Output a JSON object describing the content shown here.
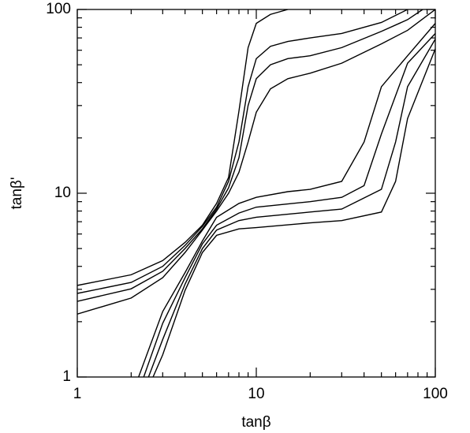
{
  "chart_data": {
    "type": "line",
    "xlabel": "tanβ",
    "ylabel": "tanβ'",
    "xscale": "log",
    "yscale": "log",
    "xlim": [
      1,
      100
    ],
    "ylim": [
      1,
      100
    ],
    "xticks": [
      1,
      10,
      100
    ],
    "yticks": [
      1,
      10,
      100
    ],
    "series": [
      {
        "color": "#000000",
        "x": [
          1,
          2,
          3,
          4,
          5,
          6,
          7,
          8,
          9,
          10,
          12,
          15
        ],
        "values": [
          3.15,
          3.6,
          4.3,
          5.4,
          6.7,
          8.8,
          12.2,
          28,
          62,
          84,
          94,
          100
        ]
      },
      {
        "color": "#000000",
        "x": [
          1,
          2,
          3,
          4,
          5,
          6,
          7,
          8,
          9,
          10,
          12,
          15,
          20,
          30,
          50,
          70
        ],
        "values": [
          2.85,
          3.27,
          4.0,
          5.2,
          6.6,
          8.4,
          11.6,
          19,
          38,
          54,
          63,
          67,
          70,
          74,
          85,
          100
        ]
      },
      {
        "color": "#000000",
        "x": [
          1,
          2,
          3,
          4,
          5,
          6,
          7,
          8,
          9,
          10,
          12,
          15,
          20,
          30,
          50,
          70,
          85
        ],
        "values": [
          2.58,
          3.02,
          3.76,
          5.0,
          6.4,
          8.2,
          10.7,
          15.6,
          30,
          42,
          50,
          54,
          56,
          62,
          76,
          88,
          100
        ]
      },
      {
        "color": "#000000",
        "x": [
          1,
          2,
          3,
          4,
          5,
          6,
          7,
          8,
          9,
          10,
          12,
          15,
          20,
          30,
          50,
          70,
          100
        ],
        "values": [
          2.2,
          2.69,
          3.47,
          4.76,
          6.3,
          8.0,
          10,
          13,
          19,
          27.6,
          37,
          42,
          45,
          51,
          65,
          77,
          100
        ]
      },
      {
        "color": "#000000",
        "x": [
          2.2,
          3,
          4,
          5,
          6,
          8,
          10,
          15,
          20,
          30,
          40,
          50,
          70,
          100
        ],
        "values": [
          1,
          2.27,
          3.7,
          5.5,
          7.4,
          8.8,
          9.5,
          10.2,
          10.5,
          11.6,
          19,
          38,
          56,
          84
        ]
      },
      {
        "color": "#000000",
        "x": [
          2.35,
          3,
          4,
          5,
          6,
          8,
          10,
          20,
          30,
          40,
          50,
          70,
          100
        ],
        "values": [
          1,
          1.96,
          3.47,
          5.3,
          6.7,
          7.8,
          8.4,
          9.0,
          9.5,
          11,
          21,
          51,
          74
        ]
      },
      {
        "color": "#000000",
        "x": [
          2.5,
          3,
          4,
          5,
          6,
          8,
          10,
          20,
          30,
          50,
          60,
          70,
          100
        ],
        "values": [
          1,
          1.6,
          3.2,
          5.0,
          6.3,
          7.1,
          7.4,
          7.9,
          8.2,
          10.5,
          19,
          38,
          69
        ]
      },
      {
        "color": "#000000",
        "x": [
          2.65,
          3,
          4,
          5,
          6,
          8,
          10,
          20,
          30,
          50,
          60,
          70,
          100
        ],
        "values": [
          1,
          1.32,
          2.96,
          4.76,
          5.9,
          6.4,
          6.5,
          6.9,
          7.1,
          7.9,
          11.6,
          25.5,
          61
        ]
      }
    ]
  }
}
